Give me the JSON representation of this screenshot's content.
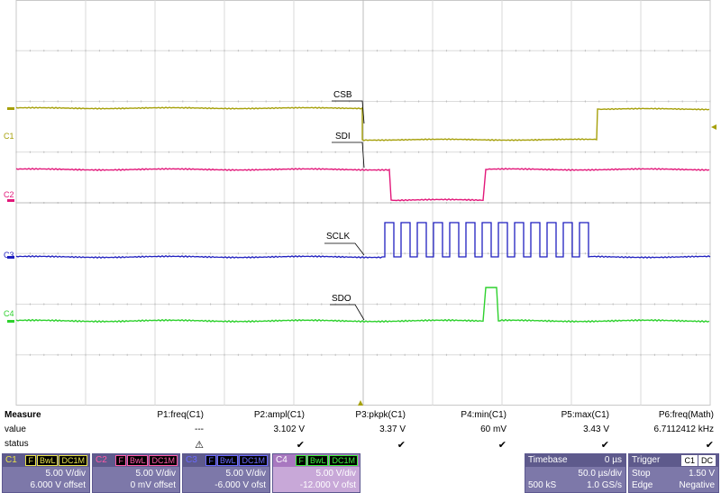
{
  "traces": {
    "csb_label": "CSB",
    "sdi_label": "SDI",
    "sclk_label": "SCLK",
    "sdo_label": "SDO",
    "c1_marker": "C1",
    "c2_marker": "C2",
    "c3_marker": "C3",
    "c4_marker": "C4",
    "colors": {
      "c1": "#a6a00a",
      "c2": "#e2187a",
      "c3": "#1f1fbf",
      "c4": "#2ed12e"
    }
  },
  "measure": {
    "title": "Measure",
    "row_value": "value",
    "row_status": "status",
    "params": [
      {
        "name": "P1:freq(C1)",
        "value": "---",
        "status": "⚠"
      },
      {
        "name": "P2:ampl(C1)",
        "value": "3.102 V",
        "status": "✔"
      },
      {
        "name": "P3:pkpk(C1)",
        "value": "3.37 V",
        "status": "✔"
      },
      {
        "name": "P4:min(C1)",
        "value": "60 mV",
        "status": "✔"
      },
      {
        "name": "P5:max(C1)",
        "value": "3.43 V",
        "status": "✔"
      },
      {
        "name": "P6:freq(Math)",
        "value": "6.7112412 kHz",
        "status": "✔"
      }
    ]
  },
  "channels": [
    {
      "name": "C1",
      "tags": [
        "F",
        "BwL",
        "DC1M"
      ],
      "vdiv": "5.00 V/div",
      "offset": "6.000 V offset"
    },
    {
      "name": "C2",
      "tags": [
        "F",
        "BwL",
        "DC1M"
      ],
      "vdiv": "5.00 V/div",
      "offset": "0 mV offset"
    },
    {
      "name": "C3",
      "tags": [
        "F",
        "BwL",
        "DC1M"
      ],
      "vdiv": "5.00 V/div",
      "offset": "-6.000 V ofst"
    },
    {
      "name": "C4",
      "tags": [
        "F",
        "BwL",
        "DC1M"
      ],
      "vdiv": "5.00 V/div",
      "offset": "-12.000 V ofst"
    }
  ],
  "timebase": {
    "title": "Timebase",
    "delay": "0 µs",
    "tdiv": "50.0 µs/div",
    "samples": "500 kS",
    "rate": "1.0 GS/s"
  },
  "trigger": {
    "title": "Trigger",
    "tags": [
      "C1",
      "DC"
    ],
    "mode": "Stop",
    "level": "1.50 V",
    "type": "Edge",
    "slope": "Negative"
  }
}
